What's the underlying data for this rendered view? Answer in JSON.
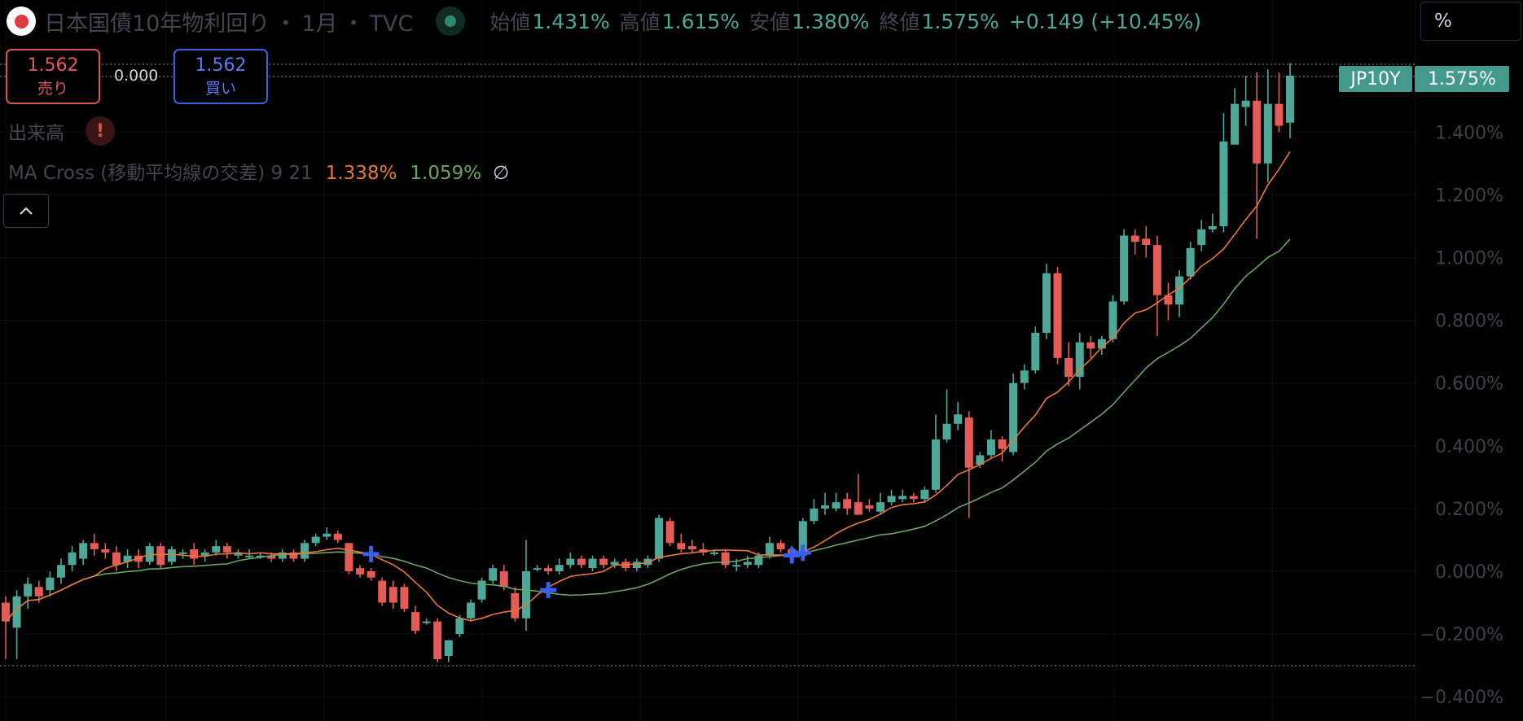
{
  "header": {
    "title": "日本国債10年物利回り",
    "sep": "・",
    "interval": "1月",
    "source": "TVC",
    "ohlc": [
      {
        "label": "始値",
        "value": "1.431%"
      },
      {
        "label": "高値",
        "value": "1.615%"
      },
      {
        "label": "安値",
        "value": "1.380%"
      },
      {
        "label": "終値",
        "value": "1.575%"
      }
    ],
    "change": "+0.149 (+10.45%)",
    "live_icon": "status-dot-icon",
    "flag_icon": "japan-flag-icon"
  },
  "unit_selector": "%",
  "trade": {
    "sell_price": "1.562",
    "sell_label": "売り",
    "spread": "0.000",
    "buy_price": "1.562",
    "buy_label": "買い"
  },
  "indicators": {
    "volume_label": "出来高",
    "volume_warning": "!",
    "ma_label": "MA Cross (移動平均線の交差) 9 21",
    "ma_fast_value": "1.338%",
    "ma_slow_value": "1.059%",
    "visibility_icon": "∅"
  },
  "price_scale": {
    "symbol": "JP10Y",
    "last": "1.575%",
    "ticks": [
      "1.400%",
      "1.200%",
      "1.000%",
      "0.800%",
      "0.600%",
      "0.400%",
      "0.200%",
      "0.000%",
      "−0.200%",
      "−0.400%"
    ]
  },
  "colors": {
    "up": "#4ea897",
    "down": "#e45b58",
    "ma_fast": "#e8773a",
    "ma_slow": "#6aa464",
    "cross": "#3a5ff0"
  },
  "chart_data": {
    "type": "candlestick",
    "unit": "%",
    "candles": [
      [
        -0.1,
        -0.16,
        -0.08,
        -0.28
      ],
      [
        -0.18,
        -0.08,
        -0.06,
        -0.28
      ],
      [
        -0.08,
        -0.04,
        -0.02,
        -0.12
      ],
      [
        -0.05,
        -0.08,
        -0.03,
        -0.1
      ],
      [
        -0.06,
        -0.02,
        0.0,
        -0.08
      ],
      [
        -0.02,
        0.02,
        0.04,
        -0.04
      ],
      [
        0.02,
        0.06,
        0.08,
        0.0
      ],
      [
        0.04,
        0.09,
        0.1,
        0.02
      ],
      [
        0.09,
        0.07,
        0.12,
        0.05
      ],
      [
        0.07,
        0.06,
        0.09,
        0.04
      ],
      [
        0.06,
        0.02,
        0.08,
        0.0
      ],
      [
        0.03,
        0.05,
        0.07,
        0.01
      ],
      [
        0.05,
        0.03,
        0.07,
        0.01
      ],
      [
        0.03,
        0.08,
        0.09,
        0.02
      ],
      [
        0.08,
        0.02,
        0.09,
        0.01
      ],
      [
        0.03,
        0.07,
        0.08,
        0.02
      ],
      [
        0.06,
        0.06,
        0.07,
        0.04
      ],
      [
        0.07,
        0.04,
        0.09,
        0.02
      ],
      [
        0.05,
        0.06,
        0.07,
        0.03
      ],
      [
        0.06,
        0.08,
        0.1,
        0.05
      ],
      [
        0.08,
        0.06,
        0.09,
        0.04
      ],
      [
        0.05,
        0.06,
        0.07,
        0.04
      ],
      [
        0.05,
        0.05,
        0.07,
        0.04
      ],
      [
        0.05,
        0.05,
        0.06,
        0.04
      ],
      [
        0.05,
        0.04,
        0.06,
        0.03
      ],
      [
        0.04,
        0.06,
        0.07,
        0.03
      ],
      [
        0.06,
        0.04,
        0.07,
        0.03
      ],
      [
        0.04,
        0.09,
        0.1,
        0.03
      ],
      [
        0.09,
        0.11,
        0.12,
        0.08
      ],
      [
        0.11,
        0.12,
        0.14,
        0.1
      ],
      [
        0.12,
        0.1,
        0.13,
        0.09
      ],
      [
        0.09,
        0.0,
        0.09,
        -0.01
      ],
      [
        0.01,
        -0.01,
        0.02,
        -0.02
      ],
      [
        0.0,
        -0.02,
        0.01,
        -0.03
      ],
      [
        -0.03,
        -0.1,
        -0.02,
        -0.11
      ],
      [
        -0.05,
        -0.1,
        -0.03,
        -0.12
      ],
      [
        -0.05,
        -0.12,
        -0.04,
        -0.13
      ],
      [
        -0.13,
        -0.19,
        -0.11,
        -0.2
      ],
      [
        -0.16,
        -0.16,
        -0.15,
        -0.17
      ],
      [
        -0.16,
        -0.28,
        -0.15,
        -0.29
      ],
      [
        -0.27,
        -0.22,
        -0.22,
        -0.29
      ],
      [
        -0.2,
        -0.15,
        -0.14,
        -0.21
      ],
      [
        -0.15,
        -0.1,
        -0.09,
        -0.16
      ],
      [
        -0.09,
        -0.03,
        -0.02,
        -0.1
      ],
      [
        -0.03,
        0.01,
        0.02,
        -0.04
      ],
      [
        0.0,
        -0.05,
        0.02,
        -0.06
      ],
      [
        -0.07,
        -0.15,
        -0.05,
        -0.16
      ],
      [
        -0.15,
        0.0,
        0.1,
        -0.19
      ],
      [
        0.01,
        0.01,
        0.02,
        0.0
      ],
      [
        0.01,
        0.0,
        0.02,
        -0.01
      ],
      [
        0.0,
        0.02,
        0.04,
        -0.01
      ],
      [
        0.02,
        0.04,
        0.06,
        0.01
      ],
      [
        0.04,
        0.02,
        0.05,
        0.01
      ],
      [
        0.01,
        0.04,
        0.05,
        0.0
      ],
      [
        0.04,
        0.02,
        0.05,
        0.01
      ],
      [
        0.02,
        0.03,
        0.04,
        0.01
      ],
      [
        0.03,
        0.01,
        0.04,
        0.0
      ],
      [
        0.01,
        0.03,
        0.04,
        0.0
      ],
      [
        0.02,
        0.04,
        0.05,
        0.01
      ],
      [
        0.04,
        0.17,
        0.18,
        0.03
      ],
      [
        0.16,
        0.09,
        0.17,
        0.08
      ],
      [
        0.09,
        0.07,
        0.12,
        0.06
      ],
      [
        0.08,
        0.07,
        0.1,
        0.06
      ],
      [
        0.07,
        0.06,
        0.09,
        0.05
      ],
      [
        0.06,
        0.06,
        0.07,
        0.05
      ],
      [
        0.06,
        0.02,
        0.07,
        0.01
      ],
      [
        0.02,
        0.02,
        0.04,
        0.0
      ],
      [
        0.02,
        0.03,
        0.05,
        0.01
      ],
      [
        0.02,
        0.05,
        0.06,
        0.01
      ],
      [
        0.05,
        0.09,
        0.11,
        0.04
      ],
      [
        0.09,
        0.07,
        0.1,
        0.06
      ],
      [
        0.07,
        0.05,
        0.08,
        0.04
      ],
      [
        0.05,
        0.16,
        0.17,
        0.04
      ],
      [
        0.16,
        0.2,
        0.23,
        0.15
      ],
      [
        0.2,
        0.21,
        0.25,
        0.18
      ],
      [
        0.2,
        0.22,
        0.25,
        0.19
      ],
      [
        0.23,
        0.2,
        0.25,
        0.18
      ],
      [
        0.22,
        0.18,
        0.31,
        0.18
      ],
      [
        0.21,
        0.2,
        0.23,
        0.19
      ],
      [
        0.19,
        0.22,
        0.25,
        0.18
      ],
      [
        0.22,
        0.24,
        0.26,
        0.21
      ],
      [
        0.23,
        0.24,
        0.26,
        0.22
      ],
      [
        0.24,
        0.23,
        0.25,
        0.22
      ],
      [
        0.23,
        0.26,
        0.27,
        0.22
      ],
      [
        0.26,
        0.42,
        0.5,
        0.25
      ],
      [
        0.42,
        0.47,
        0.58,
        0.41
      ],
      [
        0.47,
        0.5,
        0.54,
        0.45
      ],
      [
        0.49,
        0.33,
        0.51,
        0.17
      ],
      [
        0.34,
        0.37,
        0.38,
        0.33
      ],
      [
        0.37,
        0.42,
        0.45,
        0.36
      ],
      [
        0.42,
        0.39,
        0.43,
        0.35
      ],
      [
        0.38,
        0.6,
        0.63,
        0.37
      ],
      [
        0.6,
        0.64,
        0.66,
        0.58
      ],
      [
        0.64,
        0.76,
        0.78,
        0.63
      ],
      [
        0.76,
        0.95,
        0.98,
        0.74
      ],
      [
        0.95,
        0.68,
        0.97,
        0.66
      ],
      [
        0.68,
        0.62,
        0.73,
        0.59
      ],
      [
        0.62,
        0.73,
        0.76,
        0.58
      ],
      [
        0.73,
        0.71,
        0.75,
        0.68
      ],
      [
        0.71,
        0.74,
        0.75,
        0.69
      ],
      [
        0.74,
        0.86,
        0.88,
        0.73
      ],
      [
        0.86,
        1.07,
        1.09,
        0.85
      ],
      [
        1.07,
        1.05,
        1.09,
        1.01
      ],
      [
        1.06,
        1.04,
        1.1,
        1.0
      ],
      [
        1.04,
        0.88,
        1.07,
        0.75
      ],
      [
        0.88,
        0.85,
        0.92,
        0.8
      ],
      [
        0.85,
        0.94,
        0.96,
        0.81
      ],
      [
        0.94,
        1.03,
        1.05,
        0.93
      ],
      [
        1.04,
        1.09,
        1.12,
        1.02
      ],
      [
        1.09,
        1.1,
        1.14,
        1.08
      ],
      [
        1.1,
        1.37,
        1.46,
        1.08
      ],
      [
        1.36,
        1.49,
        1.54,
        1.36
      ],
      [
        1.48,
        1.5,
        1.58,
        1.42
      ],
      [
        1.5,
        1.3,
        1.59,
        1.06
      ],
      [
        1.3,
        1.49,
        1.6,
        1.24
      ],
      [
        1.49,
        1.42,
        1.59,
        1.4
      ],
      [
        1.43,
        1.58,
        1.62,
        1.38
      ]
    ],
    "ma_fast_last": 1.338,
    "ma_slow_last": 1.059,
    "yrange": [
      -0.45,
      1.65
    ]
  }
}
